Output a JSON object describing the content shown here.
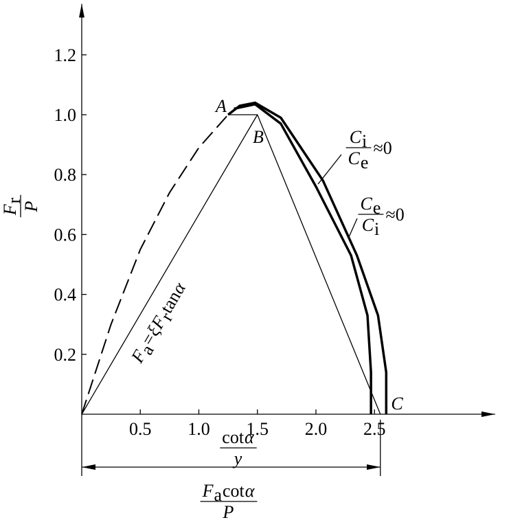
{
  "chart_data": {
    "type": "line",
    "xlim": [
      0,
      3.53
    ],
    "ylim": [
      0,
      1.37
    ],
    "xticks": [
      0.5,
      {
        "value": 1,
        "label": "1.0"
      },
      1.5,
      {
        "value": 2,
        "label": "2.0"
      },
      2.5
    ],
    "yticks": [
      0.2,
      0.4,
      0.6,
      0.8,
      {
        "value": 1,
        "label": "1.0"
      },
      1.2
    ],
    "color": "#000000",
    "series": [
      {
        "style": "dashed",
        "width": 2,
        "x": [
          0,
          0.25,
          0.5,
          0.75,
          1.0,
          1.25
        ],
        "values": [
          0,
          0.3,
          0.55,
          0.74,
          0.89,
          1.0
        ]
      },
      {
        "style": "solid",
        "width": 1.3,
        "x": [
          0,
          1.5,
          2.55
        ],
        "values": [
          0,
          1.0,
          0
        ]
      },
      {
        "style": "solid",
        "width": 1.3,
        "x": [
          1.25,
          1.5
        ],
        "values": [
          1.0,
          1.0
        ]
      },
      {
        "style": "solid",
        "width": 3.5,
        "x": [
          1.25,
          1.35,
          1.48,
          1.7,
          2.06,
          2.35,
          2.53,
          2.6,
          2.6
        ],
        "values": [
          1.0,
          1.03,
          1.04,
          0.99,
          0.78,
          0.53,
          0.33,
          0.14,
          0
        ]
      },
      {
        "style": "solid",
        "width": 3.5,
        "x": [
          1.3,
          1.48,
          1.7,
          2.0,
          2.3,
          2.44,
          2.47,
          2.47
        ],
        "values": [
          1.02,
          1.035,
          0.97,
          0.76,
          0.53,
          0.33,
          0.14,
          0
        ]
      }
    ],
    "point_labels": [
      "A",
      "B",
      "C"
    ],
    "y_label": {
      "num": [
        {
          "text": "F",
          "style": "i"
        },
        {
          "text": "r",
          "style": "sub"
        }
      ],
      "den": [
        {
          "text": "P",
          "style": "i"
        }
      ]
    },
    "x_label": {
      "num": [
        {
          "text": "cot",
          "style": "r"
        },
        {
          "text": "α",
          "style": "i"
        }
      ],
      "den": [
        {
          "text": "y",
          "style": "i"
        }
      ]
    },
    "dimension_label": {
      "num": [
        {
          "text": "F",
          "style": "i"
        },
        {
          "text": "a",
          "style": "sub"
        },
        {
          "text": " cot",
          "style": "r"
        },
        {
          "text": "α",
          "style": "i"
        }
      ],
      "den": [
        {
          "text": "P",
          "style": "i"
        }
      ]
    },
    "line_label": [
      {
        "text": "F",
        "style": "i"
      },
      {
        "text": "a",
        "style": "sub"
      },
      {
        "text": "=",
        "style": "r"
      },
      {
        "text": "ξ",
        "style": "i"
      },
      {
        "text": "F",
        "style": "i"
      },
      {
        "text": "r",
        "style": "sub"
      },
      {
        "text": " tan",
        "style": "r"
      },
      {
        "text": "α",
        "style": "i"
      }
    ],
    "curve_labels": [
      {
        "num": [
          {
            "text": "C",
            "style": "i"
          },
          {
            "text": "i",
            "style": "sub"
          }
        ],
        "den": [
          {
            "text": "C",
            "style": "i"
          },
          {
            "text": "e",
            "style": "sub"
          }
        ],
        "rhs": [
          {
            "text": "≈0",
            "style": "r"
          }
        ]
      },
      {
        "num": [
          {
            "text": "C",
            "style": "i"
          },
          {
            "text": "e",
            "style": "sub"
          }
        ],
        "den": [
          {
            "text": "C",
            "style": "i"
          },
          {
            "text": "i",
            "style": "sub"
          }
        ],
        "rhs": [
          {
            "text": "≈0",
            "style": "r"
          }
        ]
      }
    ]
  }
}
